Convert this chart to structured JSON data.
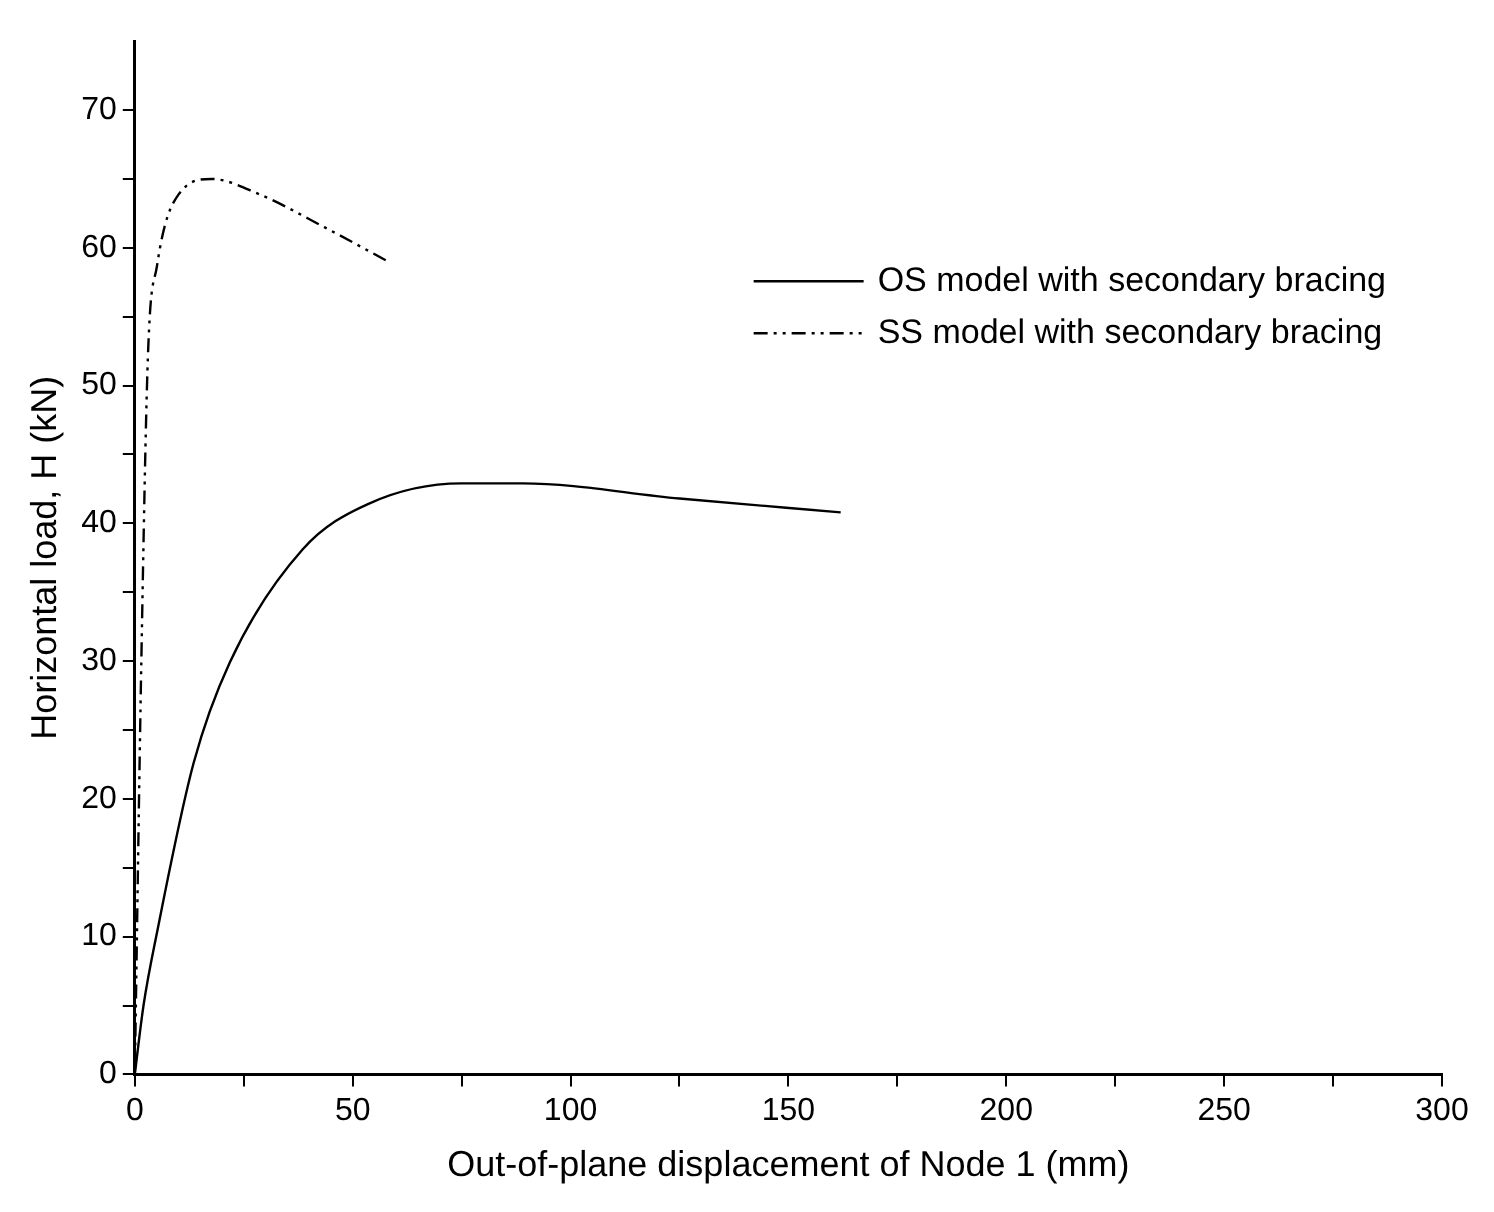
{
  "chart_data": {
    "type": "line",
    "xlabel": "Out-of-plane displacement of Node 1 (mm)",
    "ylabel": "Horizontal load, H (kN)",
    "xlim": [
      0,
      300
    ],
    "xticks": [
      0,
      {
        "value": 25,
        "label": null
      },
      50,
      {
        "value": 75,
        "label": null
      },
      100,
      {
        "value": 125,
        "label": null
      },
      150,
      {
        "value": 175,
        "label": null
      },
      200,
      {
        "value": 225,
        "label": null
      },
      250,
      {
        "value": 275,
        "label": null
      },
      300
    ],
    "ylim": [
      0,
      75
    ],
    "yticks": [
      0,
      {
        "value": 5,
        "label": null
      },
      10,
      {
        "value": 15,
        "label": null
      },
      20,
      {
        "value": 25,
        "label": null
      },
      30,
      {
        "value": 35,
        "label": null
      },
      40,
      {
        "value": 45,
        "label": null
      },
      50,
      {
        "value": 55,
        "label": null
      },
      60,
      {
        "value": 65,
        "label": null
      },
      70
    ],
    "grid": false,
    "legend": "top right",
    "marker": "none",
    "series": [
      {
        "name": "OS model with secondary bracing",
        "color": "#000000",
        "line_style": "solid",
        "x": [
          0,
          2,
          5.1,
          13.5,
          21.8,
          38.5,
          53.5,
          75,
          89,
          125,
          162
        ],
        "values": [
          0,
          5,
          10.3,
          22.6,
          29.9,
          38.1,
          41.4,
          42.9,
          42.9,
          41.8,
          40.8
        ]
      },
      {
        "name": "SS model with secondary bracing",
        "color": "#000000",
        "line_style": "dashed",
        "x": [
          0,
          1.5,
          3,
          5.1,
          10.1,
          17.6,
          28.5,
          43.5,
          57.6
        ],
        "values": [
          0,
          30,
          52,
          58.7,
          63.9,
          65,
          63.9,
          61.5,
          59.1
        ]
      }
    ]
  }
}
